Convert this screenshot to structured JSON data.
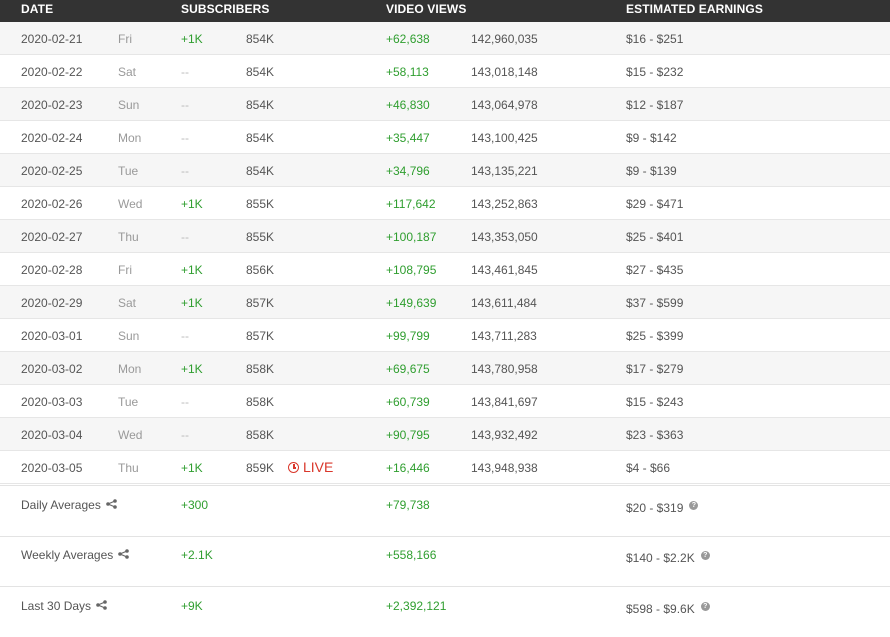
{
  "header": {
    "date": "DATE",
    "subscribers": "SUBSCRIBERS",
    "video_views": "VIDEO VIEWS",
    "estimated_earnings": "ESTIMATED EARNINGS"
  },
  "rows": [
    {
      "date": "2020-02-21",
      "dow": "Fri",
      "subs_delta": "+1K",
      "subs_total": "854K",
      "views_delta": "+62,638",
      "views_total": "142,960,035",
      "earnings": "$16  -  $251"
    },
    {
      "date": "2020-02-22",
      "dow": "Sat",
      "subs_delta": "--",
      "subs_total": "854K",
      "views_delta": "+58,113",
      "views_total": "143,018,148",
      "earnings": "$15  -  $232"
    },
    {
      "date": "2020-02-23",
      "dow": "Sun",
      "subs_delta": "--",
      "subs_total": "854K",
      "views_delta": "+46,830",
      "views_total": "143,064,978",
      "earnings": "$12  -  $187"
    },
    {
      "date": "2020-02-24",
      "dow": "Mon",
      "subs_delta": "--",
      "subs_total": "854K",
      "views_delta": "+35,447",
      "views_total": "143,100,425",
      "earnings": "$9  -  $142"
    },
    {
      "date": "2020-02-25",
      "dow": "Tue",
      "subs_delta": "--",
      "subs_total": "854K",
      "views_delta": "+34,796",
      "views_total": "143,135,221",
      "earnings": "$9  -  $139"
    },
    {
      "date": "2020-02-26",
      "dow": "Wed",
      "subs_delta": "+1K",
      "subs_total": "855K",
      "views_delta": "+117,642",
      "views_total": "143,252,863",
      "earnings": "$29  -  $471"
    },
    {
      "date": "2020-02-27",
      "dow": "Thu",
      "subs_delta": "--",
      "subs_total": "855K",
      "views_delta": "+100,187",
      "views_total": "143,353,050",
      "earnings": "$25  -  $401"
    },
    {
      "date": "2020-02-28",
      "dow": "Fri",
      "subs_delta": "+1K",
      "subs_total": "856K",
      "views_delta": "+108,795",
      "views_total": "143,461,845",
      "earnings": "$27  -  $435"
    },
    {
      "date": "2020-02-29",
      "dow": "Sat",
      "subs_delta": "+1K",
      "subs_total": "857K",
      "views_delta": "+149,639",
      "views_total": "143,611,484",
      "earnings": "$37  -  $599"
    },
    {
      "date": "2020-03-01",
      "dow": "Sun",
      "subs_delta": "--",
      "subs_total": "857K",
      "views_delta": "+99,799",
      "views_total": "143,711,283",
      "earnings": "$25  -  $399"
    },
    {
      "date": "2020-03-02",
      "dow": "Mon",
      "subs_delta": "+1K",
      "subs_total": "858K",
      "views_delta": "+69,675",
      "views_total": "143,780,958",
      "earnings": "$17  -  $279"
    },
    {
      "date": "2020-03-03",
      "dow": "Tue",
      "subs_delta": "--",
      "subs_total": "858K",
      "views_delta": "+60,739",
      "views_total": "143,841,697",
      "earnings": "$15  -  $243"
    },
    {
      "date": "2020-03-04",
      "dow": "Wed",
      "subs_delta": "--",
      "subs_total": "858K",
      "views_delta": "+90,795",
      "views_total": "143,932,492",
      "earnings": "$23  -  $363"
    },
    {
      "date": "2020-03-05",
      "dow": "Thu",
      "subs_delta": "+1K",
      "subs_total": "859K",
      "views_delta": "+16,446",
      "views_total": "143,948,938",
      "earnings": "$4  -  $66",
      "live": "LIVE"
    }
  ],
  "summary": [
    {
      "label": "Daily Averages",
      "subs": "+300",
      "views": "+79,738",
      "earnings": "$20  -  $319"
    },
    {
      "label": "Weekly Averages",
      "subs": "+2.1K",
      "views": "+558,166",
      "earnings": "$140  -  $2.2K"
    },
    {
      "label": "Last 30 Days",
      "subs": "+9K",
      "views": "+2,392,121",
      "earnings": "$598  -  $9.6K"
    }
  ],
  "icons": {
    "share": "share-icon",
    "help": "help-icon",
    "live_clock": "clock-icon"
  },
  "colors": {
    "header_bg": "#333333",
    "positive": "#2f9e2f",
    "live": "#d9372b"
  }
}
